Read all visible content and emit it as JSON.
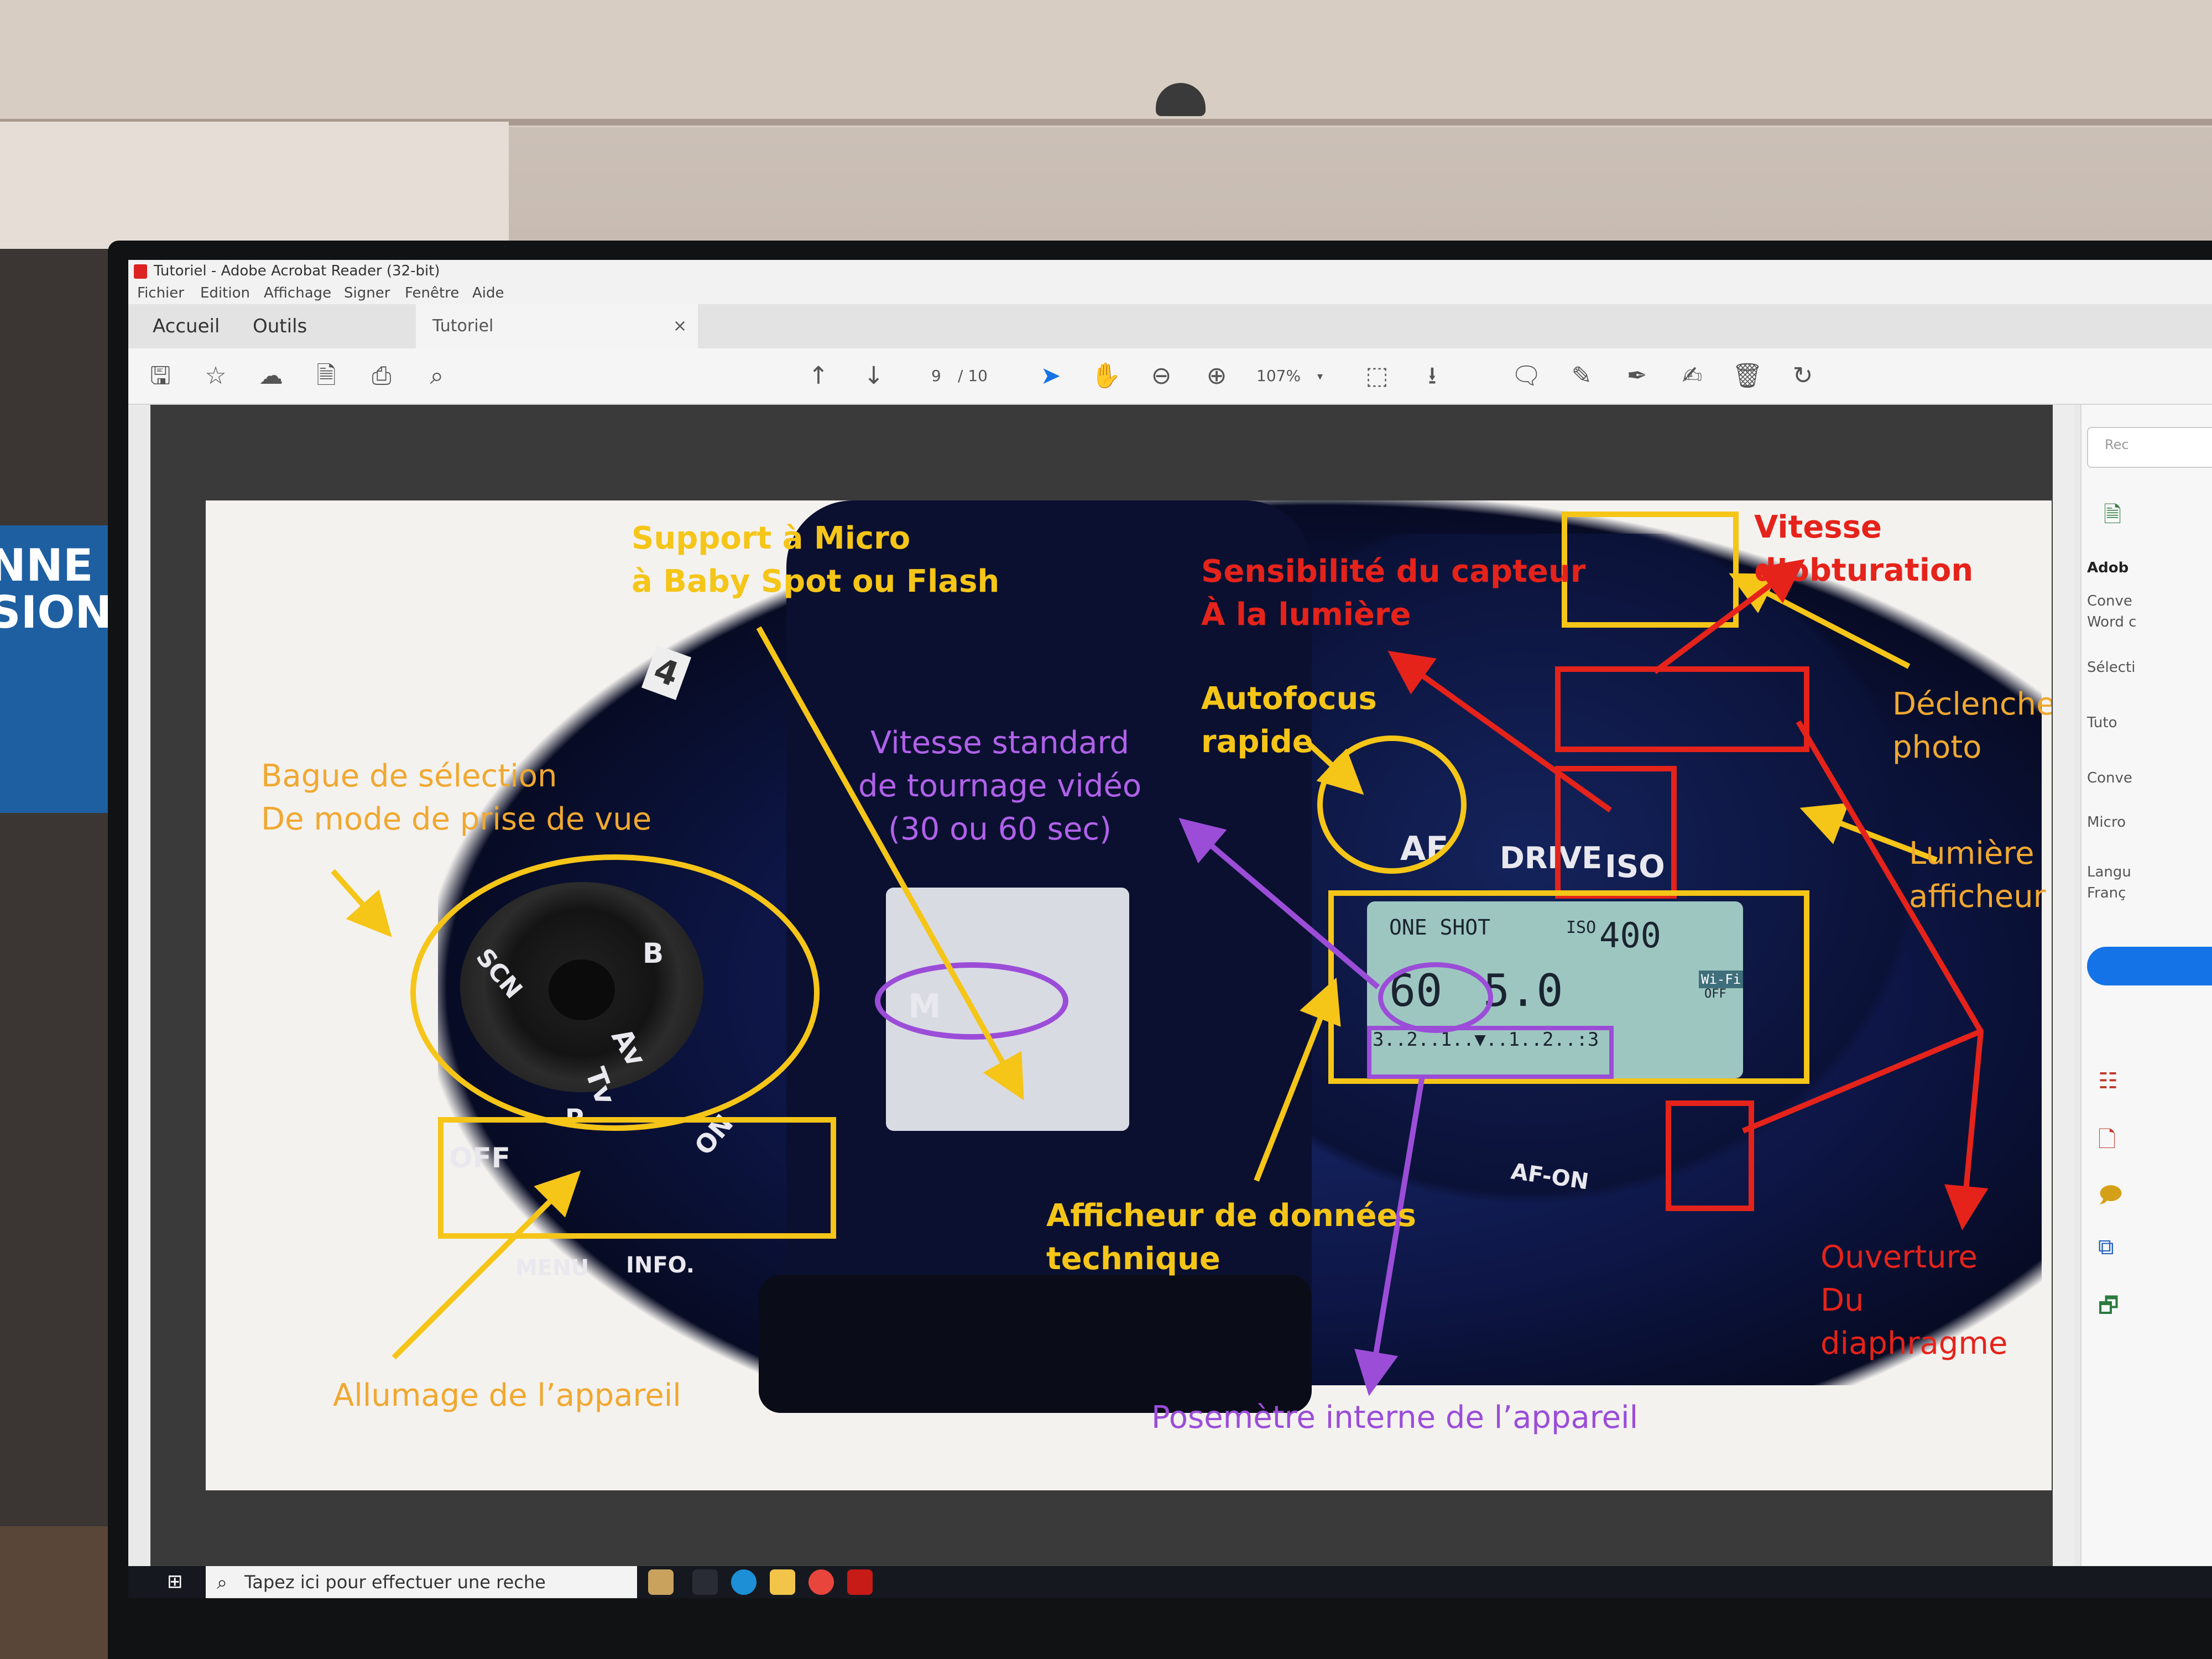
{
  "window": {
    "title": "Tutoriel - Adobe Acrobat Reader (32-bit)",
    "menu": [
      "Fichier",
      "Edition",
      "Affichage",
      "Signer",
      "Fenêtre",
      "Aide"
    ],
    "tabs": {
      "home": "Accueil",
      "tools": "Outils",
      "document": "Tutoriel",
      "close": "×"
    }
  },
  "toolbar": {
    "page_current": "9",
    "page_total": "/ 10",
    "zoom": "107%"
  },
  "right_pane": {
    "search_placeholder": "Rec",
    "heading": "Adob",
    "items": [
      "Conve",
      "Word c",
      "Sélecti",
      "Tuto",
      "Conve",
      "Micro",
      "Langu",
      "Franç"
    ]
  },
  "slide": {
    "labels": {
      "support_micro": "Support à Micro\nà Baby Spot ou Flash",
      "sensibilite": "Sensibilité du capteur\nÀ la lumière",
      "vitesse_obturation": "Vitesse d’obturation",
      "autofocus": "Autofocus\nrapide",
      "declencheur": "Déclencheur\nphoto",
      "bague": "Bague de sélection\nDe mode de prise de vue",
      "vitesse_standard": "Vitesse standard\nde tournage vidéo\n(30 ou 60 sec)",
      "lumiere": "Lumière\nafficheur",
      "afficheur": "Afficheur de données\ntechnique",
      "ouverture": "Ouverture\nDu\ndiaphragme",
      "allumage": "Allumage de l’appareil",
      "posemetre": "Posemètre interne de l’appareil"
    },
    "camera_text": {
      "af": "AF",
      "drive": "DRIVE",
      "iso": "ISO",
      "off": "OFF",
      "on": "ON",
      "menu": "MENU",
      "info": "INFO.",
      "af_on": "AF-ON",
      "mode_m": "M",
      "mode_av": "Av",
      "mode_tv": "Tv",
      "mode_p": "P",
      "mode_b": "B",
      "mode_scn": "SCN",
      "lcd_one_shot": "ONE SHOT",
      "lcd_iso": "ISO",
      "lcd_iso_value": "400",
      "lcd_shutter": "60",
      "lcd_aperture": "5.0",
      "lcd_wifi": "Wi-Fi",
      "lcd_wifi_off": "OFF",
      "lcd_meter": "3..2..1..▼..1..2..:3",
      "hotshoe_mark": "4"
    },
    "colors": {
      "yellow": "#f5c518",
      "red": "#e5231b",
      "purple": "#9b4dd8",
      "label_orange": "#f0a830"
    }
  },
  "taskbar": {
    "search_placeholder": "Tapez ici pour effectuer une reche"
  }
}
